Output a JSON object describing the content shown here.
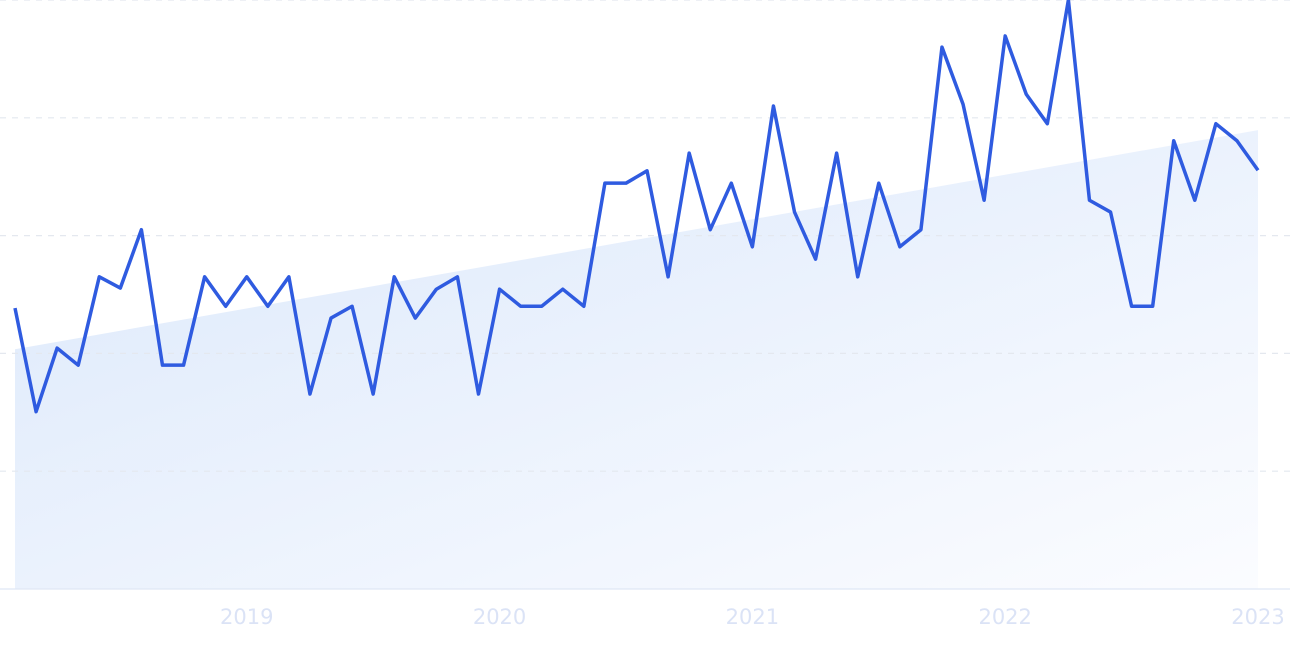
{
  "chart_data": {
    "type": "line",
    "categories": [
      null,
      null,
      null,
      null,
      null,
      null,
      null,
      null,
      null,
      null,
      null,
      "2019",
      null,
      null,
      null,
      null,
      null,
      null,
      null,
      null,
      null,
      null,
      null,
      "2020",
      null,
      null,
      null,
      null,
      null,
      null,
      null,
      null,
      null,
      null,
      null,
      "2021",
      null,
      null,
      null,
      null,
      null,
      null,
      null,
      null,
      null,
      null,
      null,
      "2022",
      null,
      null,
      null,
      null,
      null,
      null,
      null,
      null,
      null,
      null,
      null,
      "2023"
    ],
    "values": [
      47.7,
      30.1,
      40.9,
      38.0,
      53.0,
      51.1,
      61.0,
      38.0,
      38.0,
      53.0,
      48.0,
      53.0,
      48.0,
      53.0,
      33.1,
      46.0,
      48.0,
      33.1,
      53.0,
      46.0,
      50.9,
      53.0,
      33.1,
      50.9,
      48.0,
      48.0,
      50.9,
      48.0,
      68.9,
      68.9,
      71.0,
      53.0,
      74.0,
      61.0,
      68.9,
      58.1,
      82.0,
      64.0,
      56.0,
      74.0,
      53.0,
      68.9,
      58.1,
      61.0,
      92.0,
      82.3,
      66.0,
      93.9,
      84.0,
      79.0,
      100,
      66.0,
      64.0,
      48.0,
      48.0,
      76.1,
      66.0,
      79.0,
      76.1,
      71.1
    ],
    "color": "#2f5be0",
    "trend": [
      40.7,
      77.9
    ],
    "ylim": [
      0,
      100
    ],
    "yticks": [
      0,
      20,
      40,
      60,
      80,
      100
    ],
    "grid": true
  }
}
